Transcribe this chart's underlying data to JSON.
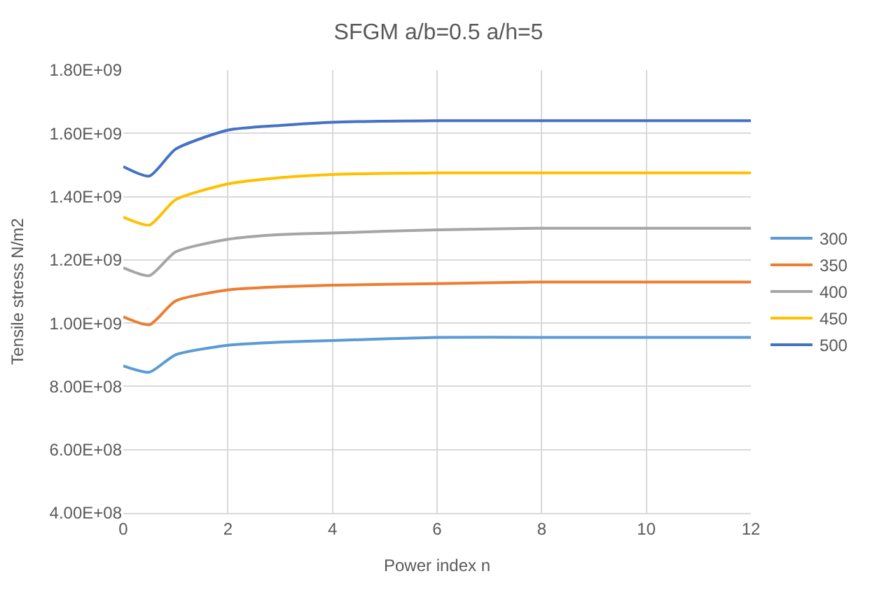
{
  "chart_data": {
    "type": "line",
    "title": "SFGM a/b=0.5 a/h=5",
    "xlabel": "Power index n",
    "ylabel": "Tensile stress N/m2",
    "x": [
      0,
      0.5,
      1,
      2,
      3,
      4,
      6,
      8,
      10,
      12
    ],
    "series": [
      {
        "name": "300",
        "color": "#5b9bd5",
        "values": [
          865000000,
          845000000,
          900000000,
          930000000,
          940000000,
          945000000,
          955000000,
          955000000,
          955000000,
          955000000
        ]
      },
      {
        "name": "350",
        "color": "#ed7d31",
        "values": [
          1020000000,
          995000000,
          1070000000,
          1105000000,
          1115000000,
          1120000000,
          1125000000,
          1130000000,
          1130000000,
          1130000000
        ]
      },
      {
        "name": "400",
        "color": "#a5a5a5",
        "values": [
          1175000000,
          1150000000,
          1225000000,
          1265000000,
          1280000000,
          1285000000,
          1295000000,
          1300000000,
          1300000000,
          1300000000
        ]
      },
      {
        "name": "450",
        "color": "#ffc000",
        "values": [
          1335000000,
          1310000000,
          1390000000,
          1440000000,
          1460000000,
          1470000000,
          1475000000,
          1475000000,
          1475000000,
          1475000000
        ]
      },
      {
        "name": "500",
        "color": "#4472c4",
        "values": [
          1495000000,
          1465000000,
          1550000000,
          1610000000,
          1625000000,
          1635000000,
          1640000000,
          1640000000,
          1640000000,
          1640000000
        ]
      }
    ],
    "xlim": [
      0,
      12
    ],
    "xticks": [
      0,
      2,
      4,
      6,
      8,
      10,
      12
    ],
    "ylim": [
      400000000,
      1800000000
    ],
    "yticks": [
      {
        "value": 400000000,
        "label": "4.00E+08"
      },
      {
        "value": 600000000,
        "label": "6.00E+08"
      },
      {
        "value": 800000000,
        "label": "8.00E+08"
      },
      {
        "value": 1000000000,
        "label": "1.00E+09"
      },
      {
        "value": 1200000000,
        "label": "1.20E+09"
      },
      {
        "value": 1400000000,
        "label": "1.40E+09"
      },
      {
        "value": 1600000000,
        "label": "1.60E+09"
      },
      {
        "value": 1800000000,
        "label": "1.80E+09"
      }
    ],
    "grid": true,
    "legend": "right",
    "marker": "none",
    "line_style": "solid"
  }
}
